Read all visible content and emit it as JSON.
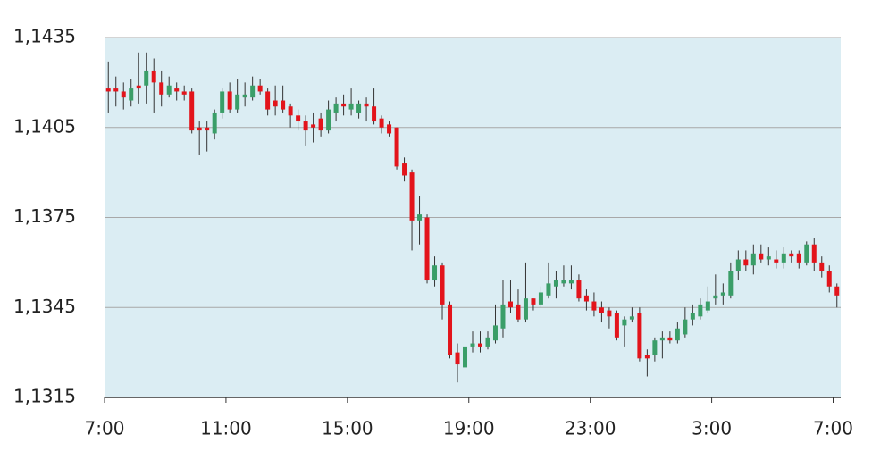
{
  "chart_data": {
    "type": "candlestick",
    "x": [
      0.125,
      0.375,
      0.625,
      0.875,
      1.125,
      1.375,
      1.625,
      1.875,
      2.125,
      2.375,
      2.625,
      2.875,
      3.125,
      3.375,
      3.625,
      3.875,
      4.125,
      4.375,
      4.625,
      4.875,
      5.125,
      5.375,
      5.625,
      5.875,
      6.125,
      6.375,
      6.625,
      6.875,
      7.125,
      7.375,
      7.625,
      7.875,
      8.125,
      8.375,
      8.625,
      8.875,
      9.125,
      9.375,
      9.625,
      9.875,
      10.125,
      10.375,
      10.625,
      10.875,
      11.125,
      11.375,
      11.625,
      11.875,
      12.125,
      12.375,
      12.625,
      12.875,
      13.125,
      13.375,
      13.625,
      13.875,
      14.125,
      14.375,
      14.625,
      14.875,
      15.125,
      15.375,
      15.625,
      15.875,
      16.125,
      16.375,
      16.625,
      16.875,
      17.125,
      17.375,
      17.625,
      17.875,
      18.125,
      18.375,
      18.625,
      18.875,
      19.125,
      19.375,
      19.625,
      19.875,
      20.125,
      20.375,
      20.625,
      20.875,
      21.125,
      21.375,
      21.625,
      21.875,
      22.125,
      22.375,
      22.625,
      22.875,
      23.125,
      23.375,
      23.625,
      23.875,
      24.125
    ],
    "open": [
      1.1418,
      1.1418,
      1.1417,
      1.1414,
      1.1419,
      1.1419,
      1.1424,
      1.142,
      1.1416,
      1.1418,
      1.1417,
      1.1417,
      1.1405,
      1.1405,
      1.1403,
      1.141,
      1.1417,
      1.1411,
      1.1415,
      1.1415,
      1.1419,
      1.1417,
      1.1414,
      1.1414,
      1.1412,
      1.1409,
      1.1407,
      1.1406,
      1.1408,
      1.1404,
      1.141,
      1.1413,
      1.1411,
      1.141,
      1.1413,
      1.1412,
      1.1408,
      1.1406,
      1.1405,
      1.1393,
      1.139,
      1.1374,
      1.1375,
      1.1354,
      1.1359,
      1.1346,
      1.133,
      1.1325,
      1.1332,
      1.1333,
      1.1332,
      1.1334,
      1.1338,
      1.1347,
      1.1346,
      1.1341,
      1.1348,
      1.1346,
      1.1349,
      1.1352,
      1.1353,
      1.1353,
      1.1354,
      1.1349,
      1.1347,
      1.1345,
      1.1344,
      1.1343,
      1.1339,
      1.1341,
      1.1343,
      1.1329,
      1.1329,
      1.1334,
      1.1335,
      1.1334,
      1.1336,
      1.1341,
      1.1342,
      1.1344,
      1.1348,
      1.1349,
      1.1349,
      1.1357,
      1.1361,
      1.1359,
      1.1363,
      1.1361,
      1.1361,
      1.136,
      1.1363,
      1.1363,
      1.136,
      1.1366,
      1.136,
      1.1357,
      1.1352
    ],
    "high": [
      1.1427,
      1.1422,
      1.142,
      1.1421,
      1.143,
      1.143,
      1.1428,
      1.1424,
      1.1422,
      1.142,
      1.1419,
      1.1418,
      1.1407,
      1.1407,
      1.1411,
      1.1418,
      1.142,
      1.1421,
      1.142,
      1.1422,
      1.1421,
      1.1418,
      1.1419,
      1.1419,
      1.1413,
      1.1411,
      1.1409,
      1.141,
      1.141,
      1.1414,
      1.1415,
      1.1416,
      1.1418,
      1.1414,
      1.1415,
      1.1418,
      1.1409,
      1.1407,
      1.1405,
      1.1395,
      1.1391,
      1.1382,
      1.1376,
      1.1362,
      1.136,
      1.1347,
      1.1333,
      1.1333,
      1.1337,
      1.1337,
      1.1337,
      1.1346,
      1.1354,
      1.1354,
      1.1351,
      1.136,
      1.1348,
      1.1352,
      1.136,
      1.1357,
      1.1359,
      1.1359,
      1.1356,
      1.1351,
      1.135,
      1.1347,
      1.1345,
      1.1344,
      1.1342,
      1.1345,
      1.1345,
      1.1331,
      1.1335,
      1.1337,
      1.1337,
      1.134,
      1.1345,
      1.1346,
      1.1348,
      1.1352,
      1.1356,
      1.1353,
      1.136,
      1.1364,
      1.1364,
      1.1366,
      1.1366,
      1.1365,
      1.1364,
      1.1365,
      1.1364,
      1.1364,
      1.1367,
      1.1368,
      1.1362,
      1.1359,
      1.1353
    ],
    "low": [
      1.141,
      1.1412,
      1.1411,
      1.1412,
      1.1413,
      1.1413,
      1.141,
      1.1412,
      1.1415,
      1.1414,
      1.1414,
      1.1403,
      1.1396,
      1.1397,
      1.1401,
      1.1408,
      1.141,
      1.141,
      1.1412,
      1.1414,
      1.1416,
      1.1409,
      1.1409,
      1.141,
      1.1405,
      1.1404,
      1.1399,
      1.14,
      1.1402,
      1.1403,
      1.1407,
      1.1409,
      1.1409,
      1.1408,
      1.1407,
      1.1406,
      1.1403,
      1.1402,
      1.1391,
      1.1387,
      1.1364,
      1.1366,
      1.1353,
      1.1352,
      1.1341,
      1.1328,
      1.132,
      1.1324,
      1.133,
      1.133,
      1.1331,
      1.1333,
      1.1335,
      1.1343,
      1.134,
      1.134,
      1.1344,
      1.1345,
      1.1348,
      1.1348,
      1.1352,
      1.1351,
      1.1347,
      1.1344,
      1.1342,
      1.134,
      1.1338,
      1.1334,
      1.1332,
      1.134,
      1.1327,
      1.1322,
      1.1327,
      1.1328,
      1.1333,
      1.1333,
      1.1335,
      1.1339,
      1.1341,
      1.1343,
      1.1346,
      1.1346,
      1.1348,
      1.1354,
      1.1357,
      1.1356,
      1.136,
      1.1359,
      1.1358,
      1.1358,
      1.136,
      1.1358,
      1.1359,
      1.1357,
      1.1355,
      1.135,
      1.1345
    ],
    "close": [
      1.1417,
      1.1417,
      1.1415,
      1.1418,
      1.1418,
      1.1424,
      1.142,
      1.1416,
      1.1419,
      1.1417,
      1.1416,
      1.1404,
      1.1404,
      1.1404,
      1.141,
      1.1417,
      1.1411,
      1.1416,
      1.1416,
      1.1419,
      1.1417,
      1.1411,
      1.1412,
      1.1411,
      1.1409,
      1.1407,
      1.1404,
      1.1405,
      1.1404,
      1.1411,
      1.1413,
      1.1412,
      1.1413,
      1.1413,
      1.1412,
      1.1407,
      1.1405,
      1.1403,
      1.1392,
      1.1389,
      1.1374,
      1.1376,
      1.1354,
      1.1359,
      1.1346,
      1.1329,
      1.1326,
      1.1332,
      1.1333,
      1.1332,
      1.1335,
      1.1339,
      1.1346,
      1.1345,
      1.1341,
      1.1348,
      1.1346,
      1.135,
      1.1353,
      1.1354,
      1.1354,
      1.1354,
      1.1348,
      1.1347,
      1.1344,
      1.1343,
      1.1342,
      1.1335,
      1.1341,
      1.1342,
      1.1328,
      1.1328,
      1.1334,
      1.1335,
      1.1334,
      1.1338,
      1.1341,
      1.1343,
      1.1346,
      1.1347,
      1.1349,
      1.135,
      1.1357,
      1.1361,
      1.1359,
      1.1363,
      1.1361,
      1.1362,
      1.136,
      1.1363,
      1.1362,
      1.136,
      1.1366,
      1.136,
      1.1357,
      1.1352,
      1.1349
    ],
    "up_color": "#3a9e68",
    "down_color": "#e3141b",
    "wick_color": "#333333",
    "background": "#dbedf3",
    "xlim": [
      0,
      24.25
    ],
    "xticks": [
      {
        "value": 0,
        "label": "7:00"
      },
      {
        "value": 4,
        "label": "11:00"
      },
      {
        "value": 8,
        "label": "15:00"
      },
      {
        "value": 12,
        "label": "19:00"
      },
      {
        "value": 16,
        "label": "23:00"
      },
      {
        "value": 20,
        "label": "3:00"
      },
      {
        "value": 24,
        "label": "7:00"
      }
    ],
    "ylim": [
      1.1315,
      1.1435
    ],
    "yticks": [
      {
        "value": 1.1315,
        "label": "1,1315"
      },
      {
        "value": 1.1345,
        "label": "1,1345"
      },
      {
        "value": 1.1375,
        "label": "1,1375"
      },
      {
        "value": 1.1405,
        "label": "1,1405"
      },
      {
        "value": 1.1435,
        "label": "1,1435"
      }
    ],
    "grid": true
  }
}
